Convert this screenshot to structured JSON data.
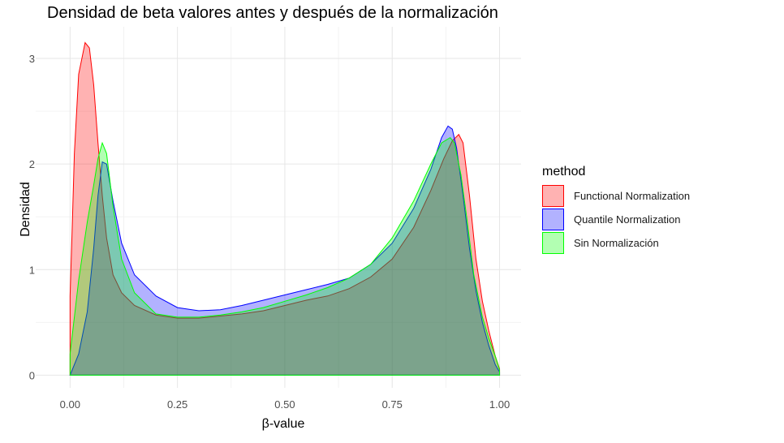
{
  "chart_data": {
    "type": "area",
    "title": "Densidad de beta valores antes y después de la normalización",
    "xlabel": "β-value",
    "ylabel": "Densidad",
    "xlim": [
      -0.08,
      1.05
    ],
    "ylim": [
      -0.12,
      3.3
    ],
    "x_ticks": [
      0.0,
      0.25,
      0.5,
      0.75,
      1.0
    ],
    "x_tick_labels": [
      "0.00",
      "0.25",
      "0.50",
      "0.75",
      "1.00"
    ],
    "y_ticks": [
      0,
      1,
      2,
      3
    ],
    "y_tick_labels": [
      "0",
      "1",
      "2",
      "3"
    ],
    "grid": true,
    "legend_title": "method",
    "legend_position": "right",
    "series": [
      {
        "name": "Functional Normalization",
        "color": "#ff0000",
        "fill": "#ff0000",
        "points": [
          [
            0.0,
            0.75
          ],
          [
            0.005,
            1.4
          ],
          [
            0.01,
            2.1
          ],
          [
            0.02,
            2.85
          ],
          [
            0.035,
            3.15
          ],
          [
            0.045,
            3.1
          ],
          [
            0.055,
            2.75
          ],
          [
            0.065,
            2.2
          ],
          [
            0.075,
            1.7
          ],
          [
            0.085,
            1.3
          ],
          [
            0.1,
            0.95
          ],
          [
            0.12,
            0.78
          ],
          [
            0.15,
            0.66
          ],
          [
            0.2,
            0.57
          ],
          [
            0.25,
            0.54
          ],
          [
            0.3,
            0.54
          ],
          [
            0.35,
            0.56
          ],
          [
            0.4,
            0.58
          ],
          [
            0.45,
            0.61
          ],
          [
            0.5,
            0.66
          ],
          [
            0.55,
            0.71
          ],
          [
            0.6,
            0.75
          ],
          [
            0.65,
            0.82
          ],
          [
            0.7,
            0.93
          ],
          [
            0.75,
            1.1
          ],
          [
            0.8,
            1.4
          ],
          [
            0.84,
            1.75
          ],
          [
            0.87,
            2.05
          ],
          [
            0.89,
            2.22
          ],
          [
            0.905,
            2.28
          ],
          [
            0.915,
            2.2
          ],
          [
            0.93,
            1.7
          ],
          [
            0.945,
            1.1
          ],
          [
            0.96,
            0.7
          ],
          [
            0.975,
            0.42
          ],
          [
            0.99,
            0.18
          ],
          [
            1.0,
            0.06
          ]
        ]
      },
      {
        "name": "Quantile Normalization",
        "color": "#0000ff",
        "fill": "#0000ff",
        "points": [
          [
            0.0,
            0.0
          ],
          [
            0.02,
            0.2
          ],
          [
            0.04,
            0.6
          ],
          [
            0.055,
            1.2
          ],
          [
            0.065,
            1.7
          ],
          [
            0.075,
            2.02
          ],
          [
            0.085,
            2.0
          ],
          [
            0.1,
            1.65
          ],
          [
            0.12,
            1.25
          ],
          [
            0.15,
            0.95
          ],
          [
            0.2,
            0.75
          ],
          [
            0.25,
            0.64
          ],
          [
            0.3,
            0.61
          ],
          [
            0.35,
            0.62
          ],
          [
            0.4,
            0.66
          ],
          [
            0.45,
            0.71
          ],
          [
            0.5,
            0.76
          ],
          [
            0.55,
            0.81
          ],
          [
            0.6,
            0.86
          ],
          [
            0.65,
            0.92
          ],
          [
            0.7,
            1.05
          ],
          [
            0.75,
            1.25
          ],
          [
            0.8,
            1.58
          ],
          [
            0.84,
            1.95
          ],
          [
            0.865,
            2.25
          ],
          [
            0.88,
            2.36
          ],
          [
            0.89,
            2.33
          ],
          [
            0.9,
            2.15
          ],
          [
            0.915,
            1.7
          ],
          [
            0.93,
            1.2
          ],
          [
            0.945,
            0.8
          ],
          [
            0.96,
            0.5
          ],
          [
            0.975,
            0.28
          ],
          [
            0.99,
            0.1
          ],
          [
            1.0,
            0.03
          ]
        ]
      },
      {
        "name": "Sin Normalización",
        "color": "#00ff00",
        "fill": "#00ff00",
        "points": [
          [
            0.0,
            0.2
          ],
          [
            0.02,
            0.9
          ],
          [
            0.04,
            1.45
          ],
          [
            0.055,
            1.8
          ],
          [
            0.065,
            2.05
          ],
          [
            0.075,
            2.2
          ],
          [
            0.085,
            2.1
          ],
          [
            0.1,
            1.6
          ],
          [
            0.12,
            1.1
          ],
          [
            0.15,
            0.78
          ],
          [
            0.2,
            0.58
          ],
          [
            0.25,
            0.55
          ],
          [
            0.3,
            0.55
          ],
          [
            0.35,
            0.57
          ],
          [
            0.4,
            0.6
          ],
          [
            0.45,
            0.64
          ],
          [
            0.5,
            0.7
          ],
          [
            0.55,
            0.76
          ],
          [
            0.6,
            0.83
          ],
          [
            0.65,
            0.92
          ],
          [
            0.7,
            1.05
          ],
          [
            0.75,
            1.3
          ],
          [
            0.8,
            1.65
          ],
          [
            0.84,
            2.0
          ],
          [
            0.865,
            2.2
          ],
          [
            0.885,
            2.25
          ],
          [
            0.895,
            2.2
          ],
          [
            0.91,
            1.9
          ],
          [
            0.925,
            1.45
          ],
          [
            0.94,
            0.95
          ],
          [
            0.96,
            0.55
          ],
          [
            0.975,
            0.35
          ],
          [
            0.99,
            0.18
          ],
          [
            1.0,
            0.05
          ]
        ]
      }
    ]
  }
}
